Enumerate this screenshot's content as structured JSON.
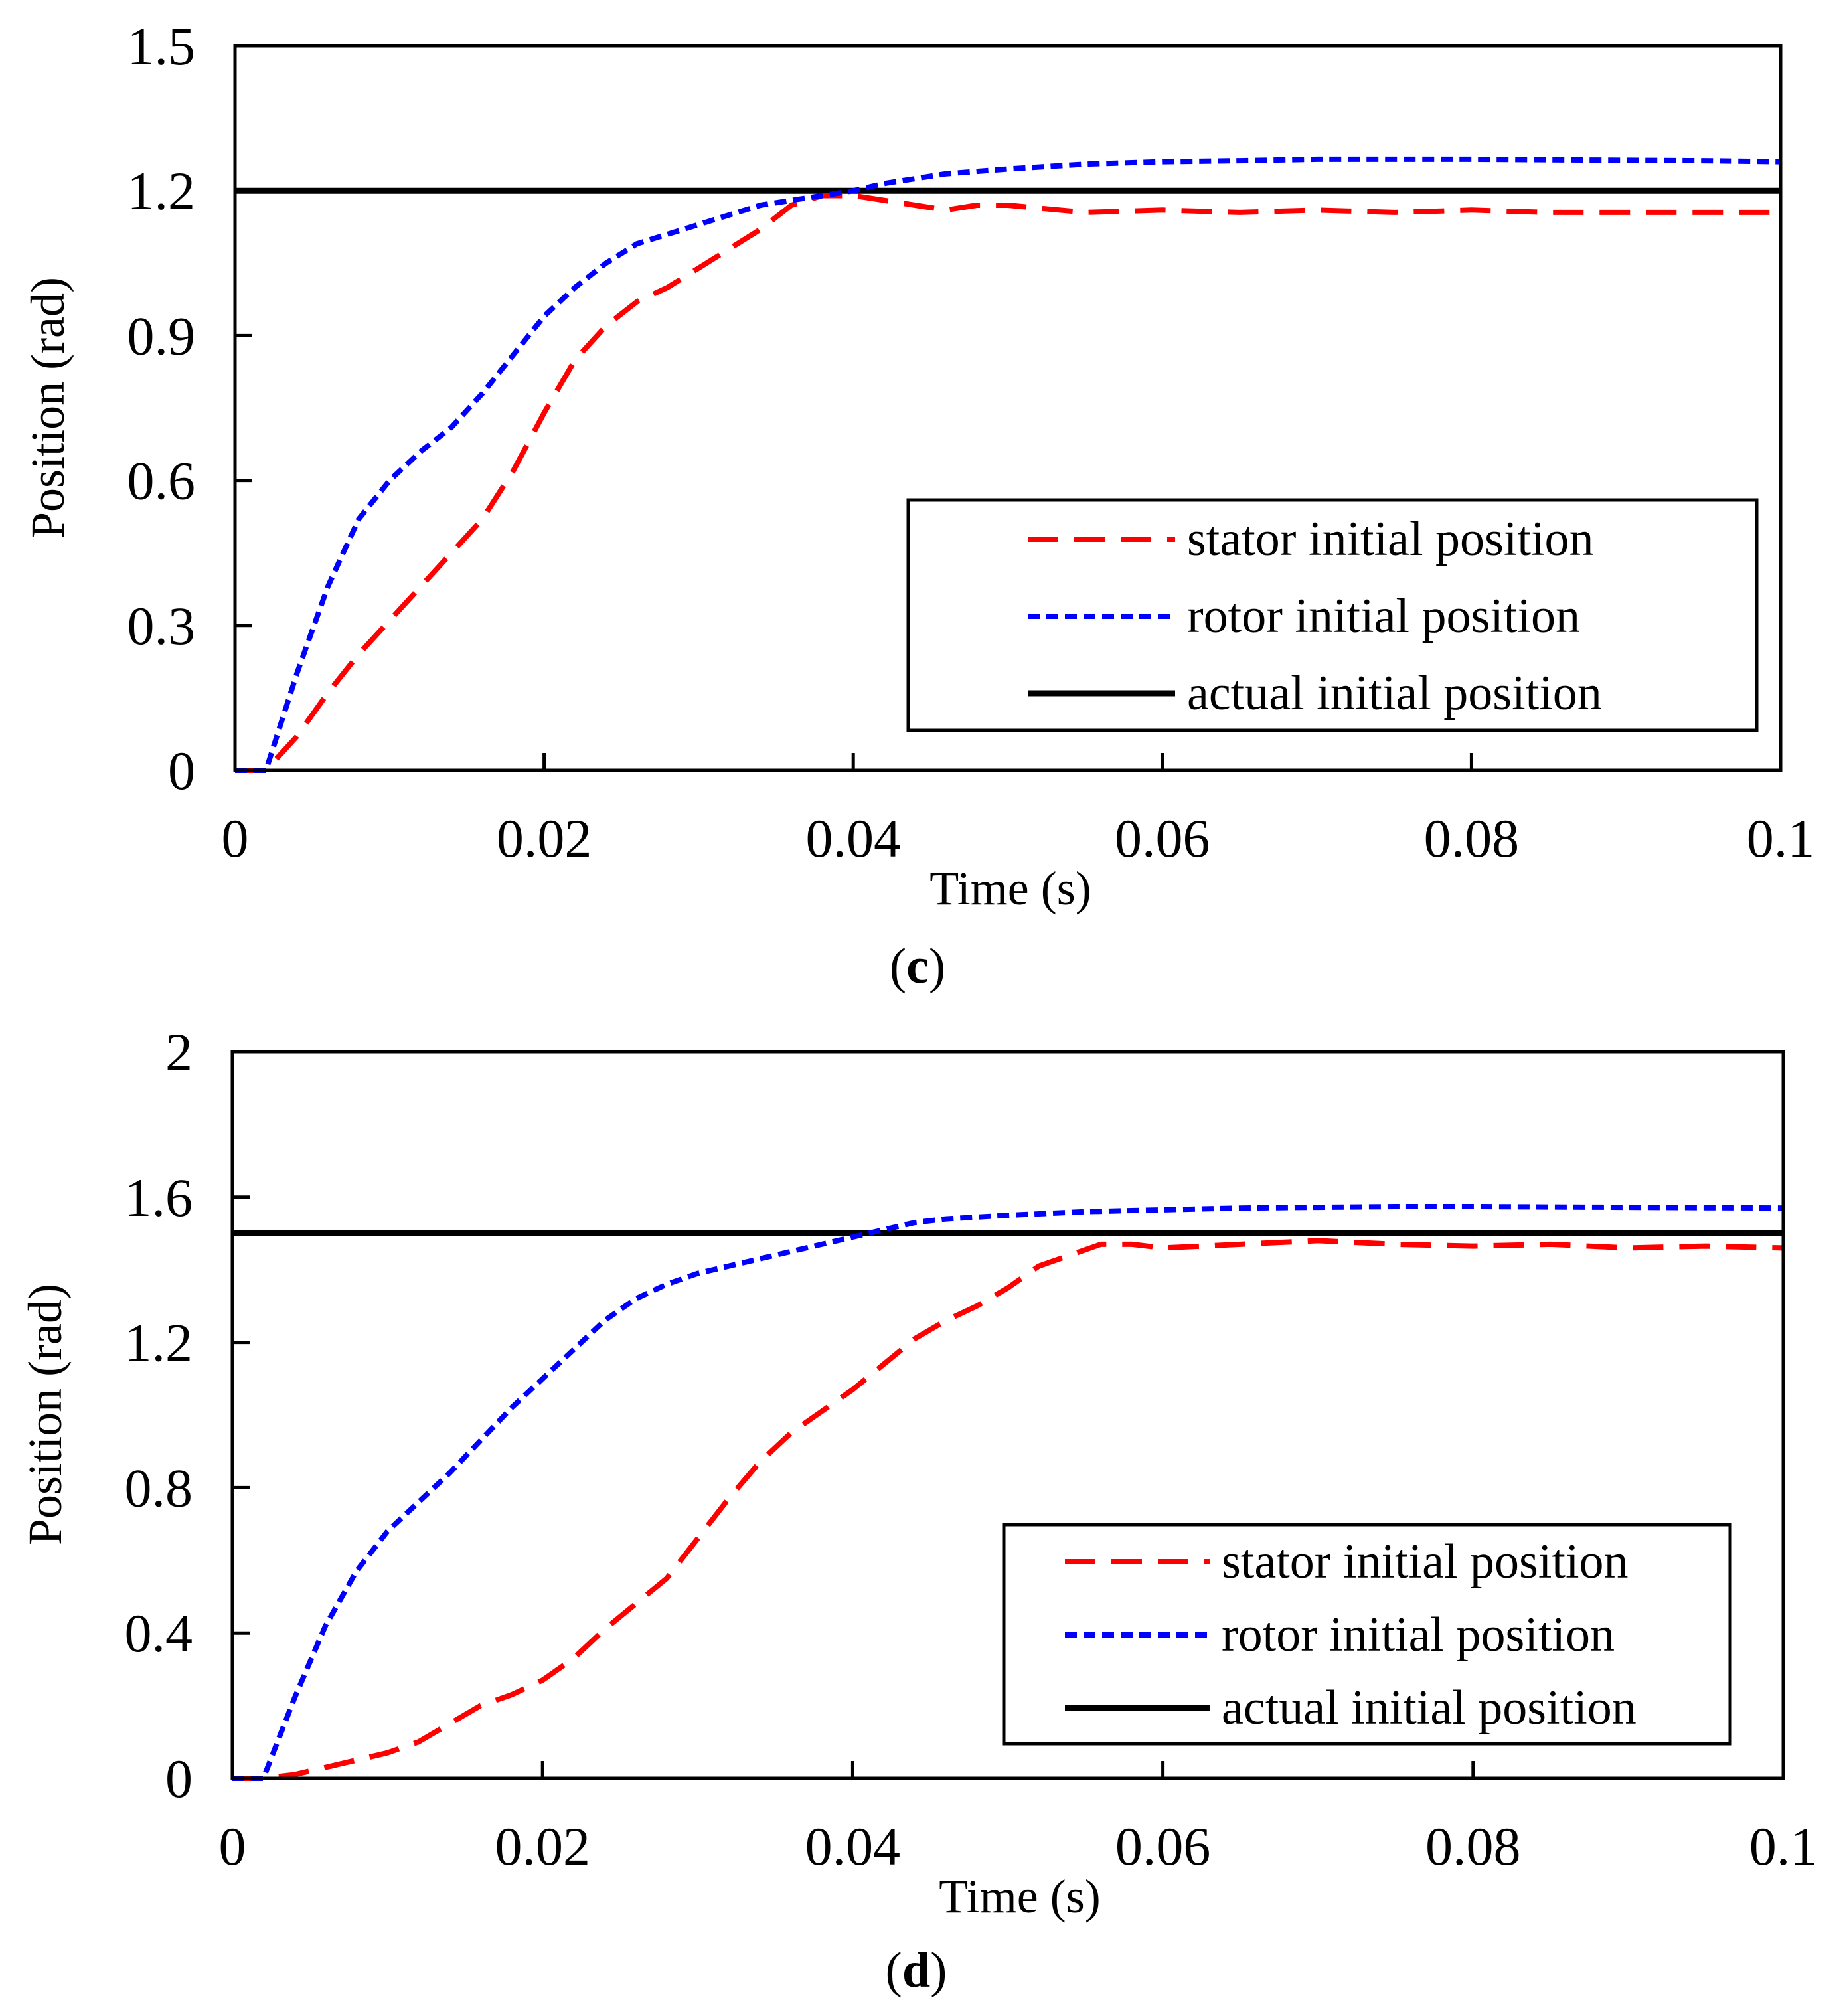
{
  "chart_data": [
    {
      "type": "line",
      "panel_label": "c",
      "xlabel": "Time (s)",
      "ylabel": "Position (rad)",
      "xlim": [
        0,
        0.1
      ],
      "ylim": [
        0,
        1.5
      ],
      "xticks": [
        0,
        0.02,
        0.04,
        0.06,
        0.08,
        0.1
      ],
      "xtick_labels": [
        "0",
        "0.02",
        "0.04",
        "0.06",
        "0.08",
        "0.1"
      ],
      "yticks": [
        0,
        0.3,
        0.6,
        0.9,
        1.2,
        1.5
      ],
      "ytick_labels": [
        "0",
        "0.3",
        "0.6",
        "0.9",
        "1.2",
        "1.5"
      ],
      "legend_position": "lower-right",
      "series": [
        {
          "name": "stator initial position",
          "color": "#ff0000",
          "style": "dashed",
          "x": [
            0,
            0.002,
            0.004,
            0.006,
            0.008,
            0.01,
            0.012,
            0.014,
            0.016,
            0.018,
            0.02,
            0.022,
            0.024,
            0.026,
            0.028,
            0.03,
            0.032,
            0.034,
            0.036,
            0.038,
            0.04,
            0.042,
            0.044,
            0.046,
            0.048,
            0.05,
            0.055,
            0.06,
            0.065,
            0.07,
            0.075,
            0.08,
            0.085,
            0.09,
            0.095,
            0.1
          ],
          "y": [
            0,
            0,
            0.07,
            0.16,
            0.24,
            0.31,
            0.38,
            0.45,
            0.52,
            0.62,
            0.74,
            0.85,
            0.92,
            0.97,
            1.0,
            1.04,
            1.08,
            1.12,
            1.17,
            1.19,
            1.19,
            1.18,
            1.17,
            1.16,
            1.17,
            1.17,
            1.155,
            1.16,
            1.155,
            1.16,
            1.155,
            1.16,
            1.155,
            1.155,
            1.155,
            1.155
          ]
        },
        {
          "name": "rotor initial position",
          "color": "#0000ff",
          "style": "dotted",
          "x": [
            0,
            0.002,
            0.004,
            0.006,
            0.008,
            0.01,
            0.012,
            0.014,
            0.016,
            0.018,
            0.02,
            0.022,
            0.024,
            0.026,
            0.028,
            0.03,
            0.032,
            0.034,
            0.036,
            0.038,
            0.04,
            0.042,
            0.044,
            0.046,
            0.048,
            0.05,
            0.055,
            0.06,
            0.065,
            0.07,
            0.075,
            0.08,
            0.085,
            0.09,
            0.095,
            0.1
          ],
          "y": [
            0,
            0,
            0.2,
            0.38,
            0.52,
            0.6,
            0.66,
            0.71,
            0.78,
            0.86,
            0.94,
            1.0,
            1.05,
            1.09,
            1.11,
            1.13,
            1.15,
            1.17,
            1.18,
            1.19,
            1.2,
            1.215,
            1.225,
            1.235,
            1.24,
            1.245,
            1.255,
            1.26,
            1.262,
            1.265,
            1.265,
            1.265,
            1.264,
            1.263,
            1.262,
            1.26
          ]
        },
        {
          "name": "actual initial position",
          "color": "#000000",
          "style": "solid",
          "x": [
            0,
            0.1
          ],
          "y": [
            1.2,
            1.2
          ]
        }
      ]
    },
    {
      "type": "line",
      "panel_label": "d",
      "xlabel": "Time (s)",
      "ylabel": "Position (rad)",
      "xlim": [
        0,
        0.1
      ],
      "ylim": [
        0,
        2
      ],
      "xticks": [
        0,
        0.02,
        0.04,
        0.06,
        0.08,
        0.1
      ],
      "xtick_labels": [
        "0",
        "0.02",
        "0.04",
        "0.06",
        "0.08",
        "0.1"
      ],
      "yticks": [
        0,
        0.4,
        0.8,
        1.2,
        1.6,
        2
      ],
      "ytick_labels": [
        "0",
        "0.4",
        "0.8",
        "1.2",
        "1.6",
        "2"
      ],
      "legend_position": "lower-right",
      "series": [
        {
          "name": "stator initial position",
          "color": "#ff0000",
          "style": "dashed",
          "x": [
            0,
            0.002,
            0.004,
            0.006,
            0.008,
            0.01,
            0.012,
            0.014,
            0.016,
            0.018,
            0.02,
            0.022,
            0.024,
            0.026,
            0.028,
            0.03,
            0.032,
            0.034,
            0.036,
            0.038,
            0.04,
            0.042,
            0.044,
            0.046,
            0.048,
            0.05,
            0.052,
            0.054,
            0.056,
            0.058,
            0.06,
            0.065,
            0.07,
            0.075,
            0.08,
            0.085,
            0.09,
            0.095,
            0.1
          ],
          "y": [
            0,
            0,
            0.01,
            0.03,
            0.05,
            0.07,
            0.1,
            0.15,
            0.2,
            0.23,
            0.27,
            0.33,
            0.41,
            0.48,
            0.55,
            0.66,
            0.77,
            0.87,
            0.95,
            1.01,
            1.07,
            1.14,
            1.21,
            1.26,
            1.3,
            1.35,
            1.41,
            1.44,
            1.47,
            1.47,
            1.46,
            1.47,
            1.48,
            1.47,
            1.465,
            1.47,
            1.46,
            1.465,
            1.46
          ]
        },
        {
          "name": "rotor initial position",
          "color": "#0000ff",
          "style": "dotted",
          "x": [
            0,
            0.002,
            0.004,
            0.006,
            0.008,
            0.01,
            0.012,
            0.014,
            0.016,
            0.018,
            0.02,
            0.022,
            0.024,
            0.026,
            0.028,
            0.03,
            0.032,
            0.034,
            0.036,
            0.038,
            0.04,
            0.042,
            0.044,
            0.046,
            0.048,
            0.05,
            0.055,
            0.06,
            0.065,
            0.07,
            0.075,
            0.08,
            0.085,
            0.09,
            0.095,
            0.1
          ],
          "y": [
            0,
            0,
            0.22,
            0.42,
            0.57,
            0.68,
            0.76,
            0.84,
            0.93,
            1.02,
            1.1,
            1.18,
            1.26,
            1.32,
            1.36,
            1.39,
            1.41,
            1.43,
            1.45,
            1.47,
            1.49,
            1.51,
            1.53,
            1.54,
            1.545,
            1.55,
            1.56,
            1.565,
            1.57,
            1.572,
            1.574,
            1.574,
            1.573,
            1.572,
            1.571,
            1.57
          ]
        },
        {
          "name": "actual initial position",
          "color": "#000000",
          "style": "solid",
          "x": [
            0,
            0.1
          ],
          "y": [
            1.5,
            1.5
          ]
        }
      ]
    }
  ]
}
